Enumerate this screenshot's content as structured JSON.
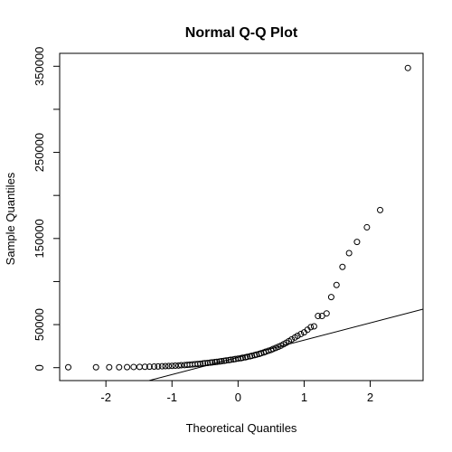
{
  "chart_data": {
    "type": "scatter",
    "title": "Normal Q-Q Plot",
    "xlabel": "Theoretical Quantiles",
    "ylabel": "Sample Quantiles",
    "xlim": [
      -2.7,
      2.8
    ],
    "ylim": [
      -15000,
      365000
    ],
    "x_ticks": [
      -2,
      -1,
      0,
      1,
      2
    ],
    "y_ticks": [
      0,
      50000,
      150000,
      250000,
      350000
    ],
    "x_tick_labels": [
      "-2",
      "-1",
      "0",
      "1",
      "2"
    ],
    "y_tick_labels": [
      "0",
      "50000",
      "150000",
      "250000",
      "350000"
    ],
    "grid": false,
    "series": [
      {
        "points": [
          [
            -2.57,
            500
          ],
          [
            -2.15,
            500
          ],
          [
            -1.95,
            500
          ],
          [
            -1.8,
            500
          ],
          [
            -1.68,
            600
          ],
          [
            -1.58,
            800
          ],
          [
            -1.49,
            900
          ],
          [
            -1.41,
            1000
          ],
          [
            -1.34,
            1100
          ],
          [
            -1.27,
            1300
          ],
          [
            -1.21,
            1400
          ],
          [
            -1.15,
            1600
          ],
          [
            -1.1,
            1800
          ],
          [
            -1.05,
            1900
          ],
          [
            -1.0,
            2100
          ],
          [
            -0.95,
            2300
          ],
          [
            -0.9,
            2500
          ],
          [
            -0.86,
            2800
          ],
          [
            -0.81,
            3000
          ],
          [
            -0.77,
            3200
          ],
          [
            -0.73,
            3500
          ],
          [
            -0.69,
            3700
          ],
          [
            -0.65,
            4000
          ],
          [
            -0.61,
            4300
          ],
          [
            -0.57,
            4600
          ],
          [
            -0.53,
            4900
          ],
          [
            -0.5,
            5200
          ],
          [
            -0.46,
            5500
          ],
          [
            -0.42,
            5800
          ],
          [
            -0.39,
            6100
          ],
          [
            -0.35,
            6500
          ],
          [
            -0.32,
            6800
          ],
          [
            -0.28,
            7200
          ],
          [
            -0.25,
            7600
          ],
          [
            -0.21,
            8000
          ],
          [
            -0.18,
            8400
          ],
          [
            -0.14,
            8800
          ],
          [
            -0.11,
            9200
          ],
          [
            -0.07,
            9600
          ],
          [
            -0.04,
            10000
          ],
          [
            0.0,
            10500
          ],
          [
            0.04,
            11000
          ],
          [
            0.07,
            11500
          ],
          [
            0.11,
            12000
          ],
          [
            0.14,
            12600
          ],
          [
            0.18,
            13200
          ],
          [
            0.21,
            13800
          ],
          [
            0.25,
            14500
          ],
          [
            0.28,
            15200
          ],
          [
            0.32,
            16000
          ],
          [
            0.35,
            16800
          ],
          [
            0.39,
            17700
          ],
          [
            0.42,
            18600
          ],
          [
            0.46,
            19600
          ],
          [
            0.5,
            20600
          ],
          [
            0.53,
            21700
          ],
          [
            0.57,
            22900
          ],
          [
            0.61,
            24200
          ],
          [
            0.65,
            25600
          ],
          [
            0.69,
            27200
          ],
          [
            0.73,
            28900
          ],
          [
            0.77,
            30800
          ],
          [
            0.81,
            32800
          ],
          [
            0.86,
            35000
          ],
          [
            0.9,
            37000
          ],
          [
            0.95,
            39000
          ],
          [
            1.0,
            41000
          ],
          [
            1.05,
            44000
          ],
          [
            1.1,
            47000
          ],
          [
            1.15,
            48000
          ],
          [
            1.21,
            60000
          ],
          [
            1.27,
            60000
          ],
          [
            1.34,
            63000
          ],
          [
            1.41,
            82000
          ],
          [
            1.49,
            96000
          ],
          [
            1.58,
            117000
          ],
          [
            1.68,
            133000
          ],
          [
            1.8,
            146000
          ],
          [
            1.95,
            163000
          ],
          [
            2.15,
            183000
          ],
          [
            2.57,
            348000
          ]
        ]
      }
    ],
    "reference_line": {
      "intercept": 12000,
      "slope": 20000
    }
  }
}
